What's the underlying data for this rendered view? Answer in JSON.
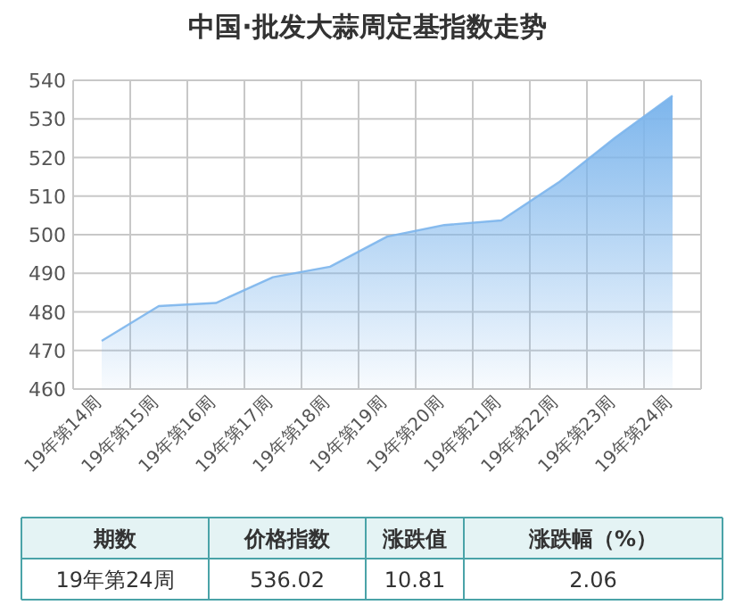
{
  "chart_data": {
    "type": "area",
    "title": "中国·批发大蒜周定基指数走势",
    "categories": [
      "19年第14周",
      "19年第15周",
      "19年第16周",
      "19年第17周",
      "19年第18周",
      "19年第19周",
      "19年第20周",
      "19年第21周",
      "19年第22周",
      "19年第23周",
      "19年第24周"
    ],
    "series": [
      {
        "color": "#7cb5ec",
        "values": [
          472.5,
          481.5,
          482.3,
          489,
          491.7,
          499.5,
          502.5,
          503.7,
          513.5,
          525.2,
          536
        ]
      }
    ],
    "ylim": [
      460,
      540
    ],
    "yticks": [
      460,
      470,
      480,
      490,
      500,
      510,
      520,
      530,
      540
    ],
    "grid": true,
    "annotations": [
      "期数",
      "价格指数",
      "涨跌值",
      "涨跌幅（%）",
      "19年第24周",
      "536.02",
      "10.81",
      "2.06"
    ]
  }
}
